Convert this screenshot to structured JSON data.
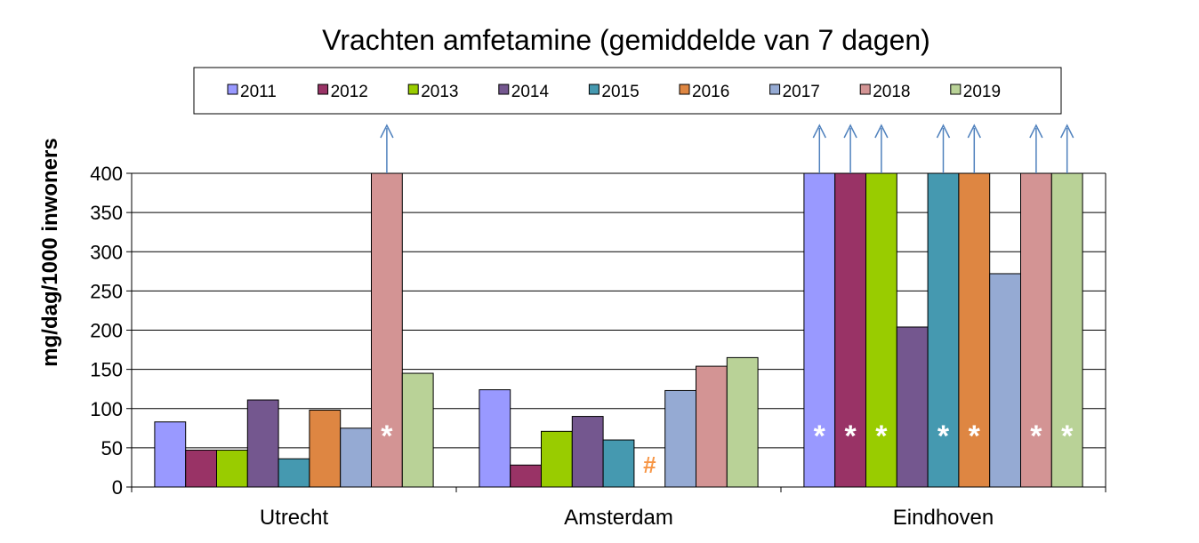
{
  "chart_data": {
    "type": "bar",
    "title": "Vrachten amfetamine (gemiddelde van 7 dagen)",
    "ylabel": "mg/dag/1000 inwoners",
    "xlabel": "",
    "ylim": [
      0,
      400
    ],
    "yticks": [
      0,
      50,
      100,
      150,
      200,
      250,
      300,
      350,
      400
    ],
    "grid": true,
    "legend_position": "top",
    "categories": [
      "Utrecht",
      "Amsterdam",
      "Eindhoven"
    ],
    "series": [
      {
        "name": "2011",
        "color": "#9999ff",
        "values": [
          83,
          124,
          400
        ],
        "clipped": [
          false,
          false,
          true
        ],
        "markers": [
          "",
          "",
          "*"
        ]
      },
      {
        "name": "2012",
        "color": "#993366",
        "values": [
          47,
          28,
          400
        ],
        "clipped": [
          false,
          false,
          true
        ],
        "markers": [
          "",
          "",
          "*"
        ]
      },
      {
        "name": "2013",
        "color": "#99cc00",
        "values": [
          47,
          71,
          400
        ],
        "clipped": [
          false,
          false,
          true
        ],
        "markers": [
          "",
          "",
          "*"
        ]
      },
      {
        "name": "2014",
        "color": "#74578f",
        "values": [
          111,
          90,
          204
        ],
        "clipped": [
          false,
          false,
          false
        ],
        "markers": [
          "",
          "",
          ""
        ]
      },
      {
        "name": "2015",
        "color": "#4599b0",
        "values": [
          36,
          60,
          400
        ],
        "clipped": [
          false,
          false,
          true
        ],
        "markers": [
          "",
          "",
          "*"
        ]
      },
      {
        "name": "2016",
        "color": "#de8642",
        "values": [
          98,
          null,
          400
        ],
        "clipped": [
          false,
          false,
          true
        ],
        "markers": [
          "",
          "#",
          "*"
        ]
      },
      {
        "name": "2017",
        "color": "#95aad3",
        "values": [
          75,
          123,
          272
        ],
        "clipped": [
          false,
          false,
          false
        ],
        "markers": [
          "",
          "",
          ""
        ]
      },
      {
        "name": "2018",
        "color": "#d39494",
        "values": [
          400,
          154,
          400
        ],
        "clipped": [
          true,
          false,
          true
        ],
        "markers": [
          "*",
          "",
          "*"
        ]
      },
      {
        "name": "2019",
        "color": "#b9d297",
        "values": [
          145,
          165,
          400
        ],
        "clipped": [
          false,
          false,
          true
        ],
        "markers": [
          "",
          "",
          "*"
        ]
      }
    ],
    "arrow_color": "#4f81bd",
    "hash_color": "#f79646"
  }
}
